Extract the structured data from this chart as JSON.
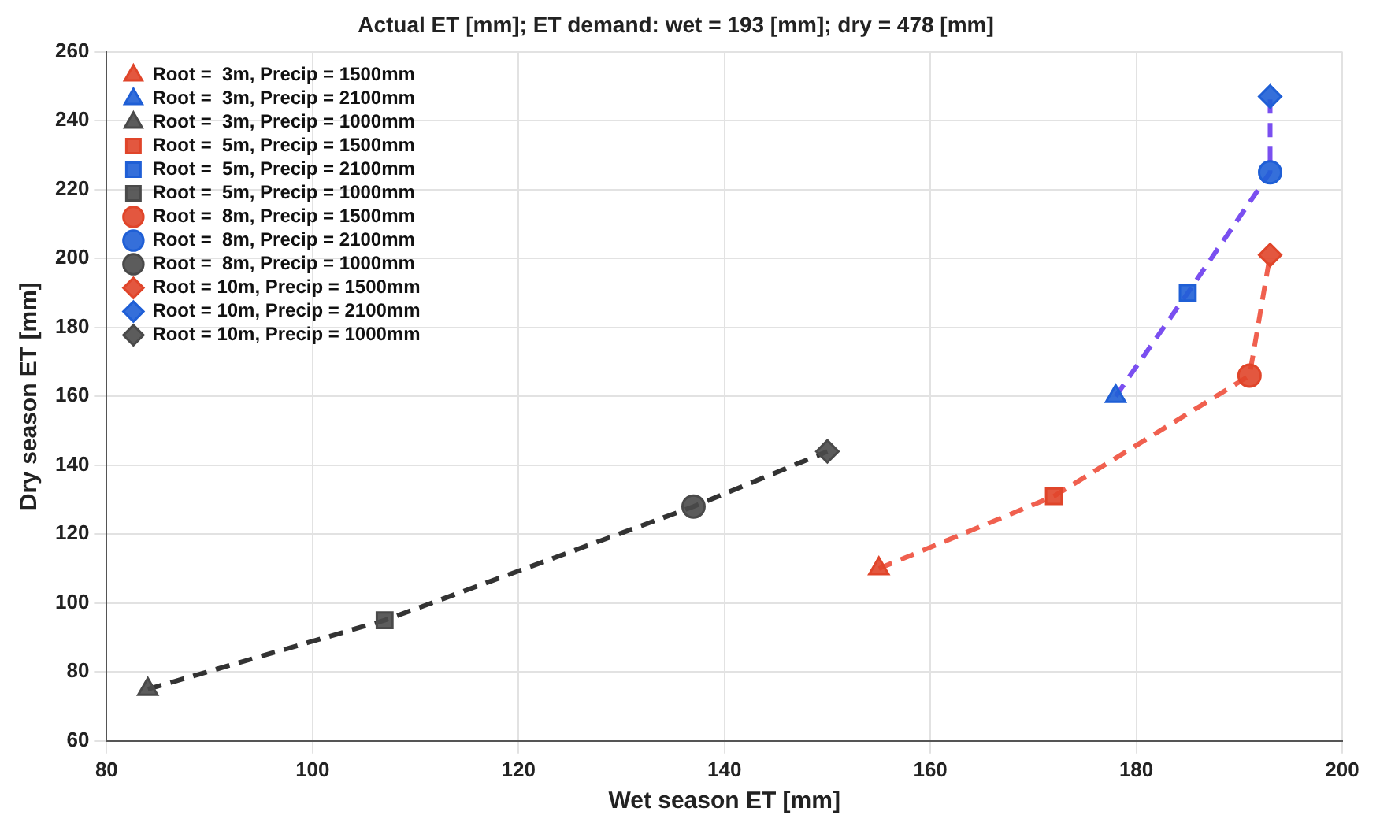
{
  "chart_data": {
    "type": "scatter",
    "title": "Actual ET [mm]; ET demand: wet = 193 [mm]; dry = 478 [mm]",
    "xlabel": "Wet season ET [mm]",
    "ylabel": "Dry season ET [mm]",
    "xlim": [
      80,
      200
    ],
    "xticks": [
      80,
      100,
      120,
      140,
      160,
      180,
      200
    ],
    "ylim": [
      60,
      260
    ],
    "yticks": [
      60,
      80,
      100,
      120,
      140,
      160,
      180,
      200,
      220,
      240,
      260
    ],
    "grid": true,
    "legend": "top left",
    "series": [
      {
        "type": "line",
        "color": "#f0604f",
        "line_style": "dashed",
        "marker": "none",
        "x": [
          155,
          172,
          191,
          193
        ],
        "values": [
          110,
          131,
          166,
          201
        ]
      },
      {
        "type": "line",
        "color": "#7a4ff0",
        "line_style": "dashed",
        "marker": "none",
        "x": [
          178,
          185,
          193,
          193
        ],
        "values": [
          160,
          190,
          225,
          247
        ]
      },
      {
        "type": "line",
        "color": "#333333",
        "line_style": "dashed",
        "marker": "none",
        "x": [
          84,
          107,
          137,
          150
        ],
        "values": [
          75,
          95,
          128,
          144
        ]
      },
      {
        "name": "Root =  3m, Precip = 1500mm",
        "color": "#e0452a",
        "marker": "triangle",
        "x": [
          155
        ],
        "values": [
          110
        ]
      },
      {
        "name": "Root =  3m, Precip = 2100mm",
        "color": "#1f5fd6",
        "marker": "triangle",
        "x": [
          178
        ],
        "values": [
          160
        ]
      },
      {
        "name": "Root =  3m, Precip = 1000mm",
        "color": "#4a4a4a",
        "marker": "triangle",
        "x": [
          84
        ],
        "values": [
          75
        ]
      },
      {
        "name": "Root =  5m, Precip = 1500mm",
        "color": "#e0452a",
        "marker": "square",
        "x": [
          172
        ],
        "values": [
          131
        ]
      },
      {
        "name": "Root =  5m, Precip = 2100mm",
        "color": "#1f5fd6",
        "marker": "square",
        "x": [
          185
        ],
        "values": [
          190
        ]
      },
      {
        "name": "Root =  5m, Precip = 1000mm",
        "color": "#4a4a4a",
        "marker": "square",
        "x": [
          107
        ],
        "values": [
          95
        ]
      },
      {
        "name": "Root =  8m, Precip = 1500mm",
        "color": "#e0452a",
        "marker": "circle",
        "x": [
          191
        ],
        "values": [
          166
        ]
      },
      {
        "name": "Root =  8m, Precip = 2100mm",
        "color": "#1f5fd6",
        "marker": "circle",
        "x": [
          193
        ],
        "values": [
          225
        ]
      },
      {
        "name": "Root =  8m, Precip = 1000mm",
        "color": "#4a4a4a",
        "marker": "circle",
        "x": [
          137
        ],
        "values": [
          128
        ]
      },
      {
        "name": "Root = 10m, Precip = 1500mm",
        "color": "#e0452a",
        "marker": "diamond",
        "x": [
          193
        ],
        "values": [
          201
        ]
      },
      {
        "name": "Root = 10m, Precip = 2100mm",
        "color": "#1f5fd6",
        "marker": "diamond",
        "x": [
          193
        ],
        "values": [
          247
        ]
      },
      {
        "name": "Root = 10m, Precip = 1000mm",
        "color": "#4a4a4a",
        "marker": "diamond",
        "x": [
          150
        ],
        "values": [
          144
        ]
      }
    ]
  }
}
